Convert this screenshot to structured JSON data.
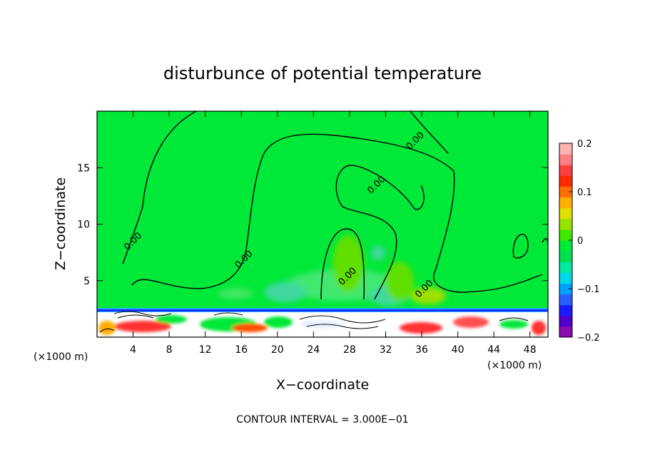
{
  "chart_data": {
    "type": "heatmap",
    "title": "disturbunce of potential temperature",
    "xlabel": "X−coordinate",
    "ylabel": "Z−coordinate",
    "x_unit_left": "(×1000 m)",
    "x_unit_right": "(×1000 m)",
    "xlim": [
      0,
      50
    ],
    "ylim": [
      0,
      20
    ],
    "x_ticks": [
      {
        "value": 4,
        "label": "4"
      },
      {
        "value": 8,
        "label": "8"
      },
      {
        "value": 12,
        "label": "12"
      },
      {
        "value": 16,
        "label": "16"
      },
      {
        "value": 20,
        "label": "20"
      },
      {
        "value": 24,
        "label": "24"
      },
      {
        "value": 28,
        "label": "28"
      },
      {
        "value": 32,
        "label": "32"
      },
      {
        "value": 36,
        "label": "36"
      },
      {
        "value": 40,
        "label": "40"
      },
      {
        "value": 44,
        "label": "44"
      },
      {
        "value": 48,
        "label": "48"
      }
    ],
    "y_ticks": [
      {
        "value": 5,
        "label": "5"
      },
      {
        "value": 10,
        "label": "10"
      },
      {
        "value": 15,
        "label": "15"
      }
    ],
    "colorbar": {
      "min": -0.2,
      "max": 0.2,
      "ticks": [
        {
          "value": 0.2,
          "label": "0.2"
        },
        {
          "value": 0.1,
          "label": "0.1"
        },
        {
          "value": 0,
          "label": "0"
        },
        {
          "value": -0.1,
          "label": "−0.1"
        },
        {
          "value": -0.2,
          "label": "−0.2"
        }
      ],
      "colors": [
        "#8a0cb0",
        "#5000c8",
        "#1a1aff",
        "#2860ff",
        "#00a0ff",
        "#00d8e8",
        "#00e8a0",
        "#00e050",
        "#00ea38",
        "#40e800",
        "#98e400",
        "#e0e000",
        "#ffb000",
        "#ff7000",
        "#ff2a00",
        "#ff4040",
        "#ff8080",
        "#ffb4b4"
      ]
    },
    "background_value": 0.0,
    "contour_labels": [
      {
        "text": "0.00",
        "x": 4.2,
        "z": 8.3
      },
      {
        "text": "0.00",
        "x": 16.5,
        "z": 6.7
      },
      {
        "text": "0.00",
        "x": 35.5,
        "z": 17.2
      },
      {
        "text": "0.00",
        "x": 31.2,
        "z": 13.3
      },
      {
        "text": "0.00",
        "x": 28.0,
        "z": 5.2
      },
      {
        "text": "0.00",
        "x": 36.5,
        "z": 4.1
      }
    ],
    "contour_interval": "CONTOUR INTERVAL = 3.000E−01"
  }
}
